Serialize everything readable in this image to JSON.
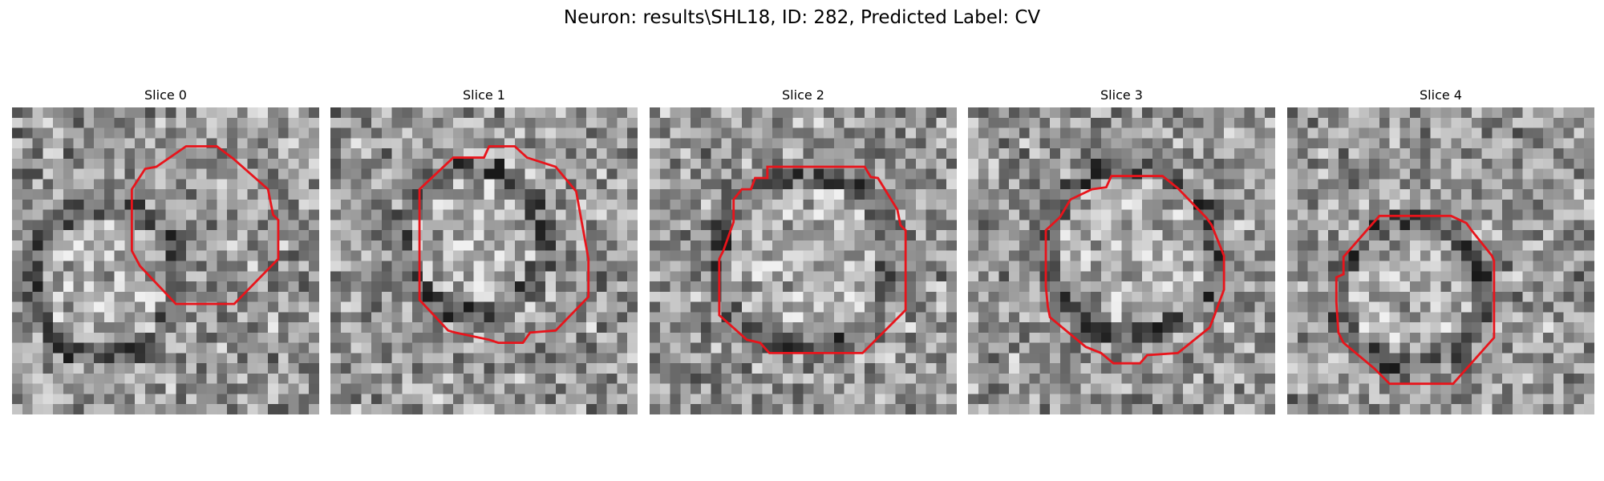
{
  "figure": {
    "title": "Neuron: results\\SHL18, ID: 282, Predicted Label: CV"
  },
  "colors": {
    "contour": "#e8141b",
    "background": "#ffffff",
    "colormap": "gray"
  },
  "slices": [
    {
      "title": "Slice 0"
    },
    {
      "title": "Slice 1"
    },
    {
      "title": "Slice 2"
    },
    {
      "title": "Slice 3"
    },
    {
      "title": "Slice 4"
    }
  ]
}
